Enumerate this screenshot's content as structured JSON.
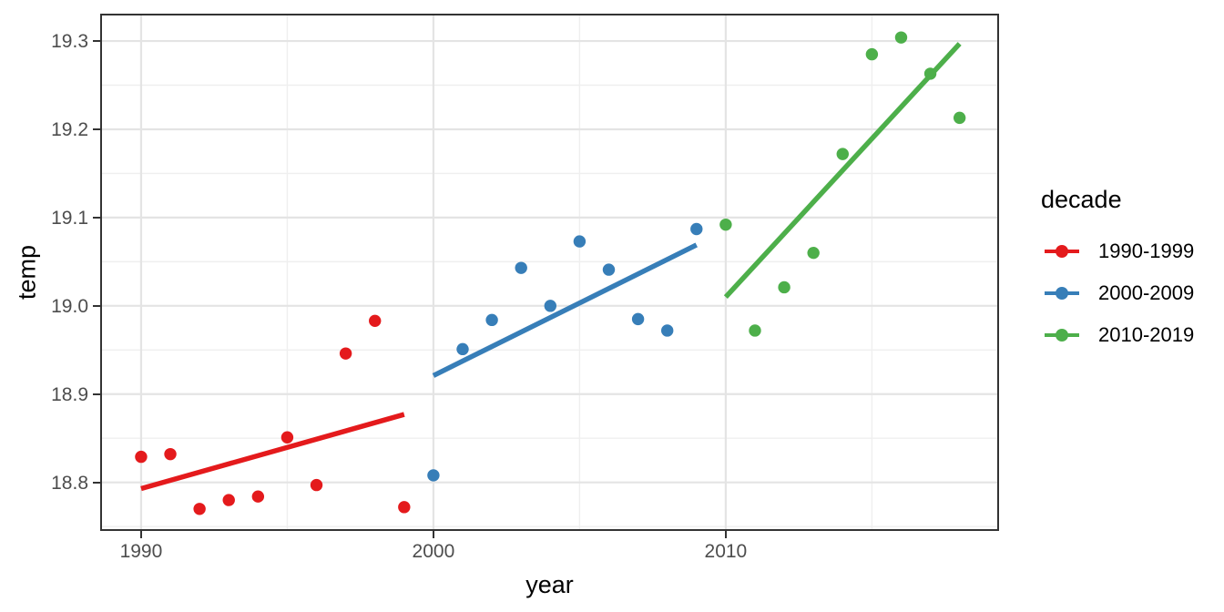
{
  "axes": {
    "x_label": "year",
    "y_label": "temp",
    "x_tick_labels": [
      "1990",
      "2000",
      "2010"
    ],
    "y_tick_labels": [
      "18.8",
      "18.9",
      "19.0",
      "19.1",
      "19.2",
      "19.3"
    ],
    "tick_label_color": "#4D4D4D"
  },
  "legend": {
    "title": "decade",
    "items": [
      {
        "label": "1990-1999",
        "color": "#E41A1C"
      },
      {
        "label": "2000-2009",
        "color": "#377EB8"
      },
      {
        "label": "2010-2019",
        "color": "#4DAF4A"
      }
    ]
  },
  "chart_data": {
    "type": "scatter",
    "title": "",
    "xlabel": "year",
    "ylabel": "temp",
    "xlim": [
      1988.6,
      2019.35
    ],
    "ylim": [
      18.745,
      19.331
    ],
    "grid": true,
    "legend_position": "right",
    "x_ticks": [
      1990,
      2000,
      2010
    ],
    "y_ticks": [
      18.8,
      18.9,
      19.0,
      19.1,
      19.2,
      19.3
    ],
    "x_minor_gridlines": [
      1995,
      2005,
      2015
    ],
    "y_minor_gridlines": [
      18.75,
      18.85,
      18.95,
      19.05,
      19.15,
      19.25
    ],
    "series": [
      {
        "name": "1990-1999",
        "color": "#E41A1C",
        "x": [
          1990,
          1991,
          1992,
          1993,
          1994,
          1995,
          1996,
          1997,
          1998,
          1999
        ],
        "y": [
          18.829,
          18.832,
          18.77,
          18.78,
          18.784,
          18.851,
          18.797,
          18.946,
          18.983,
          18.772
        ],
        "trend": {
          "x": [
            1990,
            1999
          ],
          "y": [
            18.793,
            18.877
          ]
        }
      },
      {
        "name": "2000-2009",
        "color": "#377EB8",
        "x": [
          2000,
          2001,
          2002,
          2003,
          2004,
          2005,
          2006,
          2007,
          2008,
          2009
        ],
        "y": [
          18.808,
          18.951,
          18.984,
          19.043,
          19.0,
          19.073,
          19.041,
          18.985,
          18.972,
          19.087
        ],
        "trend": {
          "x": [
            2000,
            2009
          ],
          "y": [
            18.921,
            19.069
          ]
        }
      },
      {
        "name": "2010-2019",
        "color": "#4DAF4A",
        "x": [
          2010,
          2011,
          2012,
          2013,
          2014,
          2015,
          2016,
          2017,
          2018
        ],
        "y": [
          19.092,
          18.972,
          19.021,
          19.06,
          19.172,
          19.285,
          19.304,
          19.263,
          19.213
        ],
        "trend": {
          "x": [
            2010,
            2018
          ],
          "y": [
            19.01,
            19.297
          ]
        }
      }
    ]
  },
  "style": {
    "grid_major_color": "#E4E4E4",
    "grid_minor_color": "#EFEFEF",
    "panel_border_color": "#333333",
    "tick_mark_color": "#333333",
    "point_radius": 6.7,
    "trend_line_width": 5.5
  }
}
